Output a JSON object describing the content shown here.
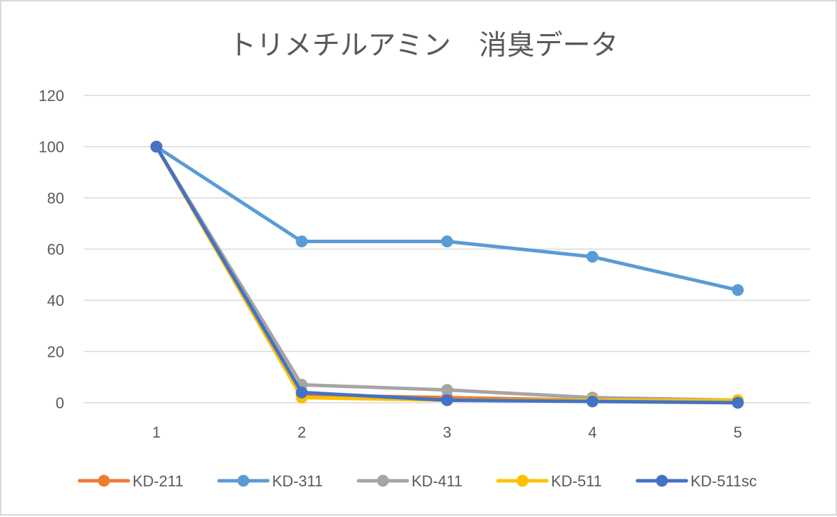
{
  "chart_data": {
    "type": "line",
    "title": "トリメチルアミン　消臭データ",
    "xlabel": "",
    "ylabel": "",
    "categories": [
      "1",
      "2",
      "3",
      "4",
      "5"
    ],
    "ylim": [
      0,
      120
    ],
    "y_ticks": [
      "0",
      "20",
      "40",
      "60",
      "80",
      "100",
      "120"
    ],
    "grid": "horizontal",
    "legend_position": "bottom",
    "series": [
      {
        "name": "KD-211",
        "color": "#ed7d31",
        "values": [
          100,
          3,
          2,
          1,
          0
        ]
      },
      {
        "name": "KD-311",
        "color": "#5b9bd5",
        "values": [
          100,
          63,
          63,
          57,
          44
        ]
      },
      {
        "name": "KD-411",
        "color": "#a5a5a5",
        "values": [
          100,
          7,
          5,
          2,
          1
        ]
      },
      {
        "name": "KD-511",
        "color": "#ffc000",
        "values": [
          100,
          2,
          1,
          1,
          1
        ]
      },
      {
        "name": "KD-511sc",
        "color": "#4472c4",
        "values": [
          100,
          4,
          1,
          0.5,
          0
        ]
      }
    ]
  }
}
